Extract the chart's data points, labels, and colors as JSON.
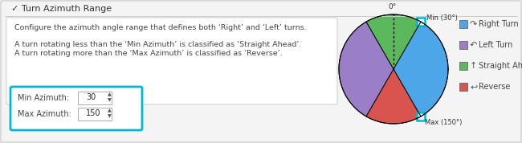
{
  "title": "✓ Turn Azimuth Range",
  "description_line1": "Configure the azimuth angle range that defines both ‘Right’ and ‘Left’ turns.",
  "description_line2": "A turn rotating less than the ‘Min Azimuth’ is classified as ‘Straight Ahead’.",
  "description_line3": "A turn rotating more than the ‘Max Azimuth’ is classified as ‘Reverse’.",
  "min_azimuth": 30,
  "max_azimuth": 150,
  "bg_color": "#e8e8e8",
  "panel_bg": "#f4f4f4",
  "inner_panel_bg": "#ffffff",
  "highlight_color": "#00b8d4",
  "pie_colors": {
    "right_turn": "#4da6e8",
    "left_turn": "#9b7ec8",
    "straight_ahead": "#5cb85c",
    "reverse": "#d9534f"
  },
  "legend_labels": [
    "Right Turn",
    "Left Turn",
    "Straight Ahead",
    "Reverse"
  ]
}
